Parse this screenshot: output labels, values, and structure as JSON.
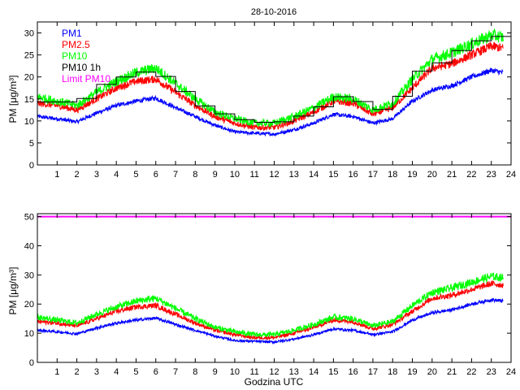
{
  "chart_data": [
    {
      "type": "line",
      "title": "28-10-2016",
      "xlabel": "",
      "ylabel": "PM [μg/m³]",
      "xlim": [
        0,
        24
      ],
      "ylim": [
        0,
        32.5
      ],
      "xticks": [
        1,
        2,
        3,
        4,
        5,
        6,
        7,
        8,
        9,
        10,
        11,
        12,
        13,
        14,
        15,
        16,
        17,
        18,
        19,
        20,
        21,
        22,
        23,
        24
      ],
      "yticks": [
        0,
        5,
        10,
        15,
        20,
        25,
        30
      ],
      "grid": false,
      "legend_position": "top-left",
      "legend": [
        {
          "name": "PM1",
          "color": "#0000ff"
        },
        {
          "name": "PM2.5",
          "color": "#ff0000"
        },
        {
          "name": "PM10",
          "color": "#00ff00"
        },
        {
          "name": "PM10 1h",
          "color": "#000000"
        },
        {
          "name": "Limit PM10",
          "color": "#ff00ff"
        }
      ],
      "x": [
        0,
        1,
        2,
        3,
        4,
        5,
        6,
        7,
        8,
        9,
        10,
        11,
        12,
        13,
        14,
        15,
        16,
        17,
        18,
        19,
        20,
        21,
        22,
        23,
        23.6
      ],
      "series": [
        {
          "name": "PM1",
          "color": "#0000ff",
          "values": [
            11,
            10.5,
            9.8,
            11.8,
            13.5,
            14.5,
            15.2,
            13,
            11,
            9,
            7.5,
            7.2,
            7,
            8,
            9.5,
            11.5,
            11,
            9.5,
            10.5,
            14.5,
            17,
            18,
            20,
            21.5,
            21
          ]
        },
        {
          "name": "PM2.5",
          "color": "#ff0000",
          "values": [
            14,
            13.5,
            12.5,
            15,
            17.5,
            19,
            19.5,
            16.5,
            13.5,
            11,
            9.5,
            8.5,
            8.5,
            10,
            12,
            14.5,
            14,
            11.5,
            13,
            17.5,
            22,
            23,
            25,
            27,
            26.5
          ]
        },
        {
          "name": "PM10",
          "color": "#00ff00",
          "values": [
            15.5,
            14.5,
            13.5,
            16.5,
            19,
            21,
            22,
            18.5,
            15,
            12,
            10.5,
            9.5,
            9.5,
            11,
            13,
            15.5,
            15,
            12.5,
            14,
            19.5,
            24,
            25.5,
            27.5,
            29.5,
            29
          ]
        }
      ],
      "step_series": {
        "name": "PM10 1h",
        "color": "#000000",
        "values": [
          14.3,
          14.3,
          15.1,
          18.3,
          20.0,
          21.1,
          20.1,
          16.7,
          13.4,
          11.6,
          10.3,
          9.7,
          9.8,
          11.1,
          13.2,
          15.5,
          14.4,
          12.6,
          15.6,
          21.3,
          23.2,
          26.0,
          28.2,
          29.2
        ]
      }
    },
    {
      "type": "line",
      "title": "",
      "xlabel": "Godzina UTC",
      "ylabel": "PM [μg/m³]",
      "xlim": [
        0,
        24
      ],
      "ylim": [
        0,
        51
      ],
      "xticks": [
        1,
        2,
        3,
        4,
        5,
        6,
        7,
        8,
        9,
        10,
        11,
        12,
        13,
        14,
        15,
        16,
        17,
        18,
        19,
        20,
        21,
        22,
        23,
        24
      ],
      "yticks": [
        0,
        10,
        20,
        30,
        40,
        50
      ],
      "grid": false,
      "x": [
        0,
        1,
        2,
        3,
        4,
        5,
        6,
        7,
        8,
        9,
        10,
        11,
        12,
        13,
        14,
        15,
        16,
        17,
        18,
        19,
        20,
        21,
        22,
        23,
        23.6
      ],
      "series": [
        {
          "name": "PM1",
          "color": "#0000ff",
          "values": [
            11,
            10.5,
            9.8,
            11.8,
            13.5,
            14.5,
            15.2,
            13,
            11,
            9,
            7.5,
            7.2,
            7,
            8,
            9.5,
            11.5,
            11,
            9.5,
            10.5,
            14.5,
            17,
            18,
            20,
            21.5,
            21
          ]
        },
        {
          "name": "PM2.5",
          "color": "#ff0000",
          "values": [
            14,
            13.5,
            12.5,
            15,
            17.5,
            19,
            19.5,
            16.5,
            13.5,
            11,
            9.5,
            8.5,
            8.5,
            10,
            12,
            14.5,
            14,
            11.5,
            13,
            17.5,
            22,
            23,
            25,
            27,
            26.5
          ]
        },
        {
          "name": "PM10",
          "color": "#00ff00",
          "values": [
            15.5,
            14.5,
            13.5,
            16.5,
            19,
            21,
            22,
            18.5,
            15,
            12,
            10.5,
            9.5,
            9.5,
            11,
            13,
            15.5,
            15,
            12.5,
            14,
            19.5,
            24,
            25.5,
            27.5,
            29.5,
            29
          ]
        }
      ],
      "limit_line": {
        "name": "Limit PM10",
        "value": 50,
        "color": "#ff00ff"
      }
    }
  ]
}
